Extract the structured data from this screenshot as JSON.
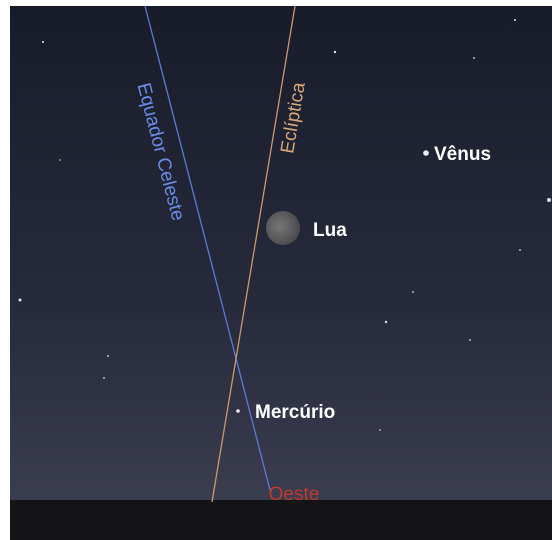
{
  "labels": {
    "celestial_equator": "Equador Celeste",
    "ecliptic": "Eclíptica",
    "venus": "Vênus",
    "moon": "Lua",
    "mercury": "Mercúrio",
    "direction": "Oeste"
  }
}
